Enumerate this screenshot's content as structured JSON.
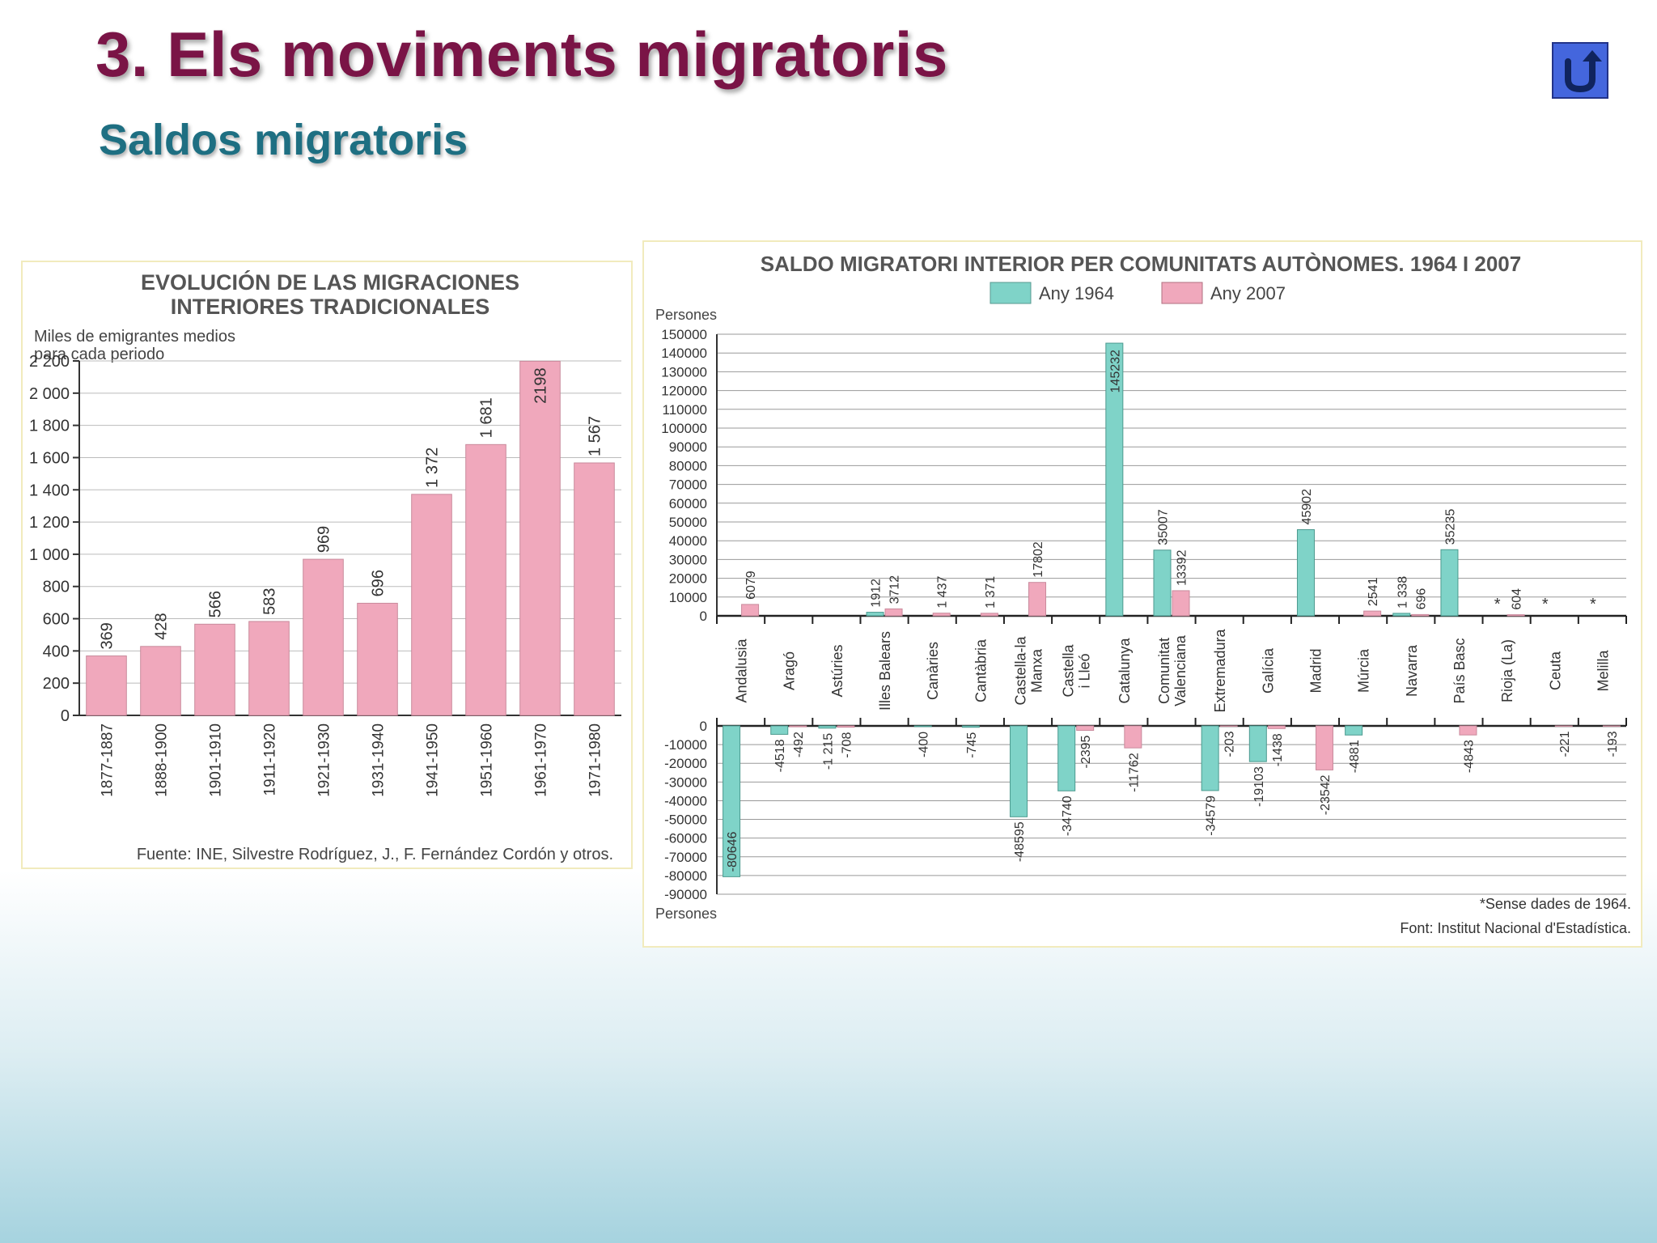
{
  "slide": {
    "title": "3. Els moviments migratoris",
    "subtitle": "Saldos migratoris",
    "back_icon": "u-turn-arrow-icon"
  },
  "colors": {
    "bar_pink": "#f0a8bc",
    "bar_teal": "#7fd3c8",
    "title_color": "#7a1446",
    "subtitle_color": "#1e6f82",
    "button_blue": "#4466dd"
  },
  "chart_data": [
    {
      "type": "bar",
      "title_lines": [
        "EVOLUCIÓN DE LAS MIGRACIONES",
        "INTERIORES TRADICIONALES"
      ],
      "ylabel_lines": [
        "Miles de emigrantes medios",
        "para cada periodo"
      ],
      "categories": [
        "1877-1887",
        "1888-1900",
        "1901-1910",
        "1911-1920",
        "1921-1930",
        "1931-1940",
        "1941-1950",
        "1951-1960",
        "1961-1970",
        "1971-1980"
      ],
      "values": [
        369,
        428,
        566,
        583,
        969,
        696,
        1372,
        1681,
        2198,
        1567
      ],
      "value_labels": [
        "369",
        "428",
        "566",
        "583",
        "969",
        "696",
        "1 372",
        "1 681",
        "2198",
        "1 567"
      ],
      "ylim": [
        0,
        2200
      ],
      "yticks": [
        0,
        200,
        400,
        600,
        800,
        1000,
        1200,
        1400,
        1600,
        1800,
        2000,
        2200
      ],
      "ytick_labels": [
        "0",
        "200",
        "400",
        "600",
        "800",
        "1 000",
        "1 200",
        "1 400",
        "1 600",
        "1 800",
        "2 000",
        "2 200"
      ],
      "grid": true,
      "source": "Fuente: INE, Silvestre Rodríguez, J., F. Fernández Cordón y otros."
    },
    {
      "type": "bar",
      "title": "SALDO MIGRATORI INTERIOR PER COMUNITATS AUTÒNOMES. 1964 I 2007",
      "ylabel_top": "Persones",
      "ylabel_bottom": "Persones",
      "legend_position": "top-center",
      "categories": [
        [
          "Andalusia"
        ],
        [
          "Aragó"
        ],
        [
          "Astúries"
        ],
        [
          "Illes Balears"
        ],
        [
          "Canàries"
        ],
        [
          "Cantàbria"
        ],
        [
          "Castella-la",
          "Manxa"
        ],
        [
          "Castella",
          "i Lleó"
        ],
        [
          "Catalunya"
        ],
        [
          "Comunitat",
          "Valenciana"
        ],
        [
          "Extremadura"
        ],
        [
          "Galícia"
        ],
        [
          "Madrid"
        ],
        [
          "Múrcia"
        ],
        [
          "Navarra"
        ],
        [
          "País Basc"
        ],
        [
          "Rioja (La)"
        ],
        [
          "Ceuta"
        ],
        [
          "Melilla"
        ]
      ],
      "series": [
        {
          "name": "Any 1964",
          "values": [
            -80646,
            -4518,
            -1215,
            1912,
            -400,
            -745,
            -48595,
            -34740,
            145232,
            35007,
            -34579,
            -19103,
            45902,
            -4881,
            1338,
            35235,
            null,
            null,
            null
          ],
          "labels": [
            "-80646",
            "-4518",
            "-1 215",
            "1912",
            "-400",
            "-745",
            "-48595",
            "-34740",
            "145232",
            "35007",
            "-34579",
            "-19103",
            "45902",
            "-4881",
            "1 338",
            "35235",
            "*",
            "*",
            "*"
          ]
        },
        {
          "name": "Any 2007",
          "values": [
            6079,
            -492,
            -708,
            3712,
            1437,
            1371,
            17802,
            -2395,
            -11762,
            13392,
            -203,
            -1438,
            -23542,
            2541,
            696,
            -4843,
            604,
            -221,
            -193
          ],
          "labels": [
            "6079",
            "-492",
            "-708",
            "3712",
            "1 437",
            "1 371",
            "17802",
            "-2395",
            "-11762",
            "13392",
            "-203",
            "-1438",
            "-23542",
            "2541",
            "696",
            "-4843",
            "604",
            "-221",
            "-193"
          ]
        }
      ],
      "positive_ylim": [
        0,
        150000
      ],
      "negative_ylim": [
        -90000,
        0
      ],
      "yticks_positive": [
        0,
        10000,
        20000,
        30000,
        40000,
        50000,
        60000,
        70000,
        80000,
        90000,
        100000,
        110000,
        120000,
        130000,
        140000,
        150000
      ],
      "yticks_negative": [
        0,
        -10000,
        -20000,
        -30000,
        -40000,
        -50000,
        -60000,
        -70000,
        -80000,
        -90000
      ],
      "grid": true,
      "note": "*Sense dades de 1964.",
      "source": "Font: Institut Nacional d'Estadística."
    }
  ]
}
